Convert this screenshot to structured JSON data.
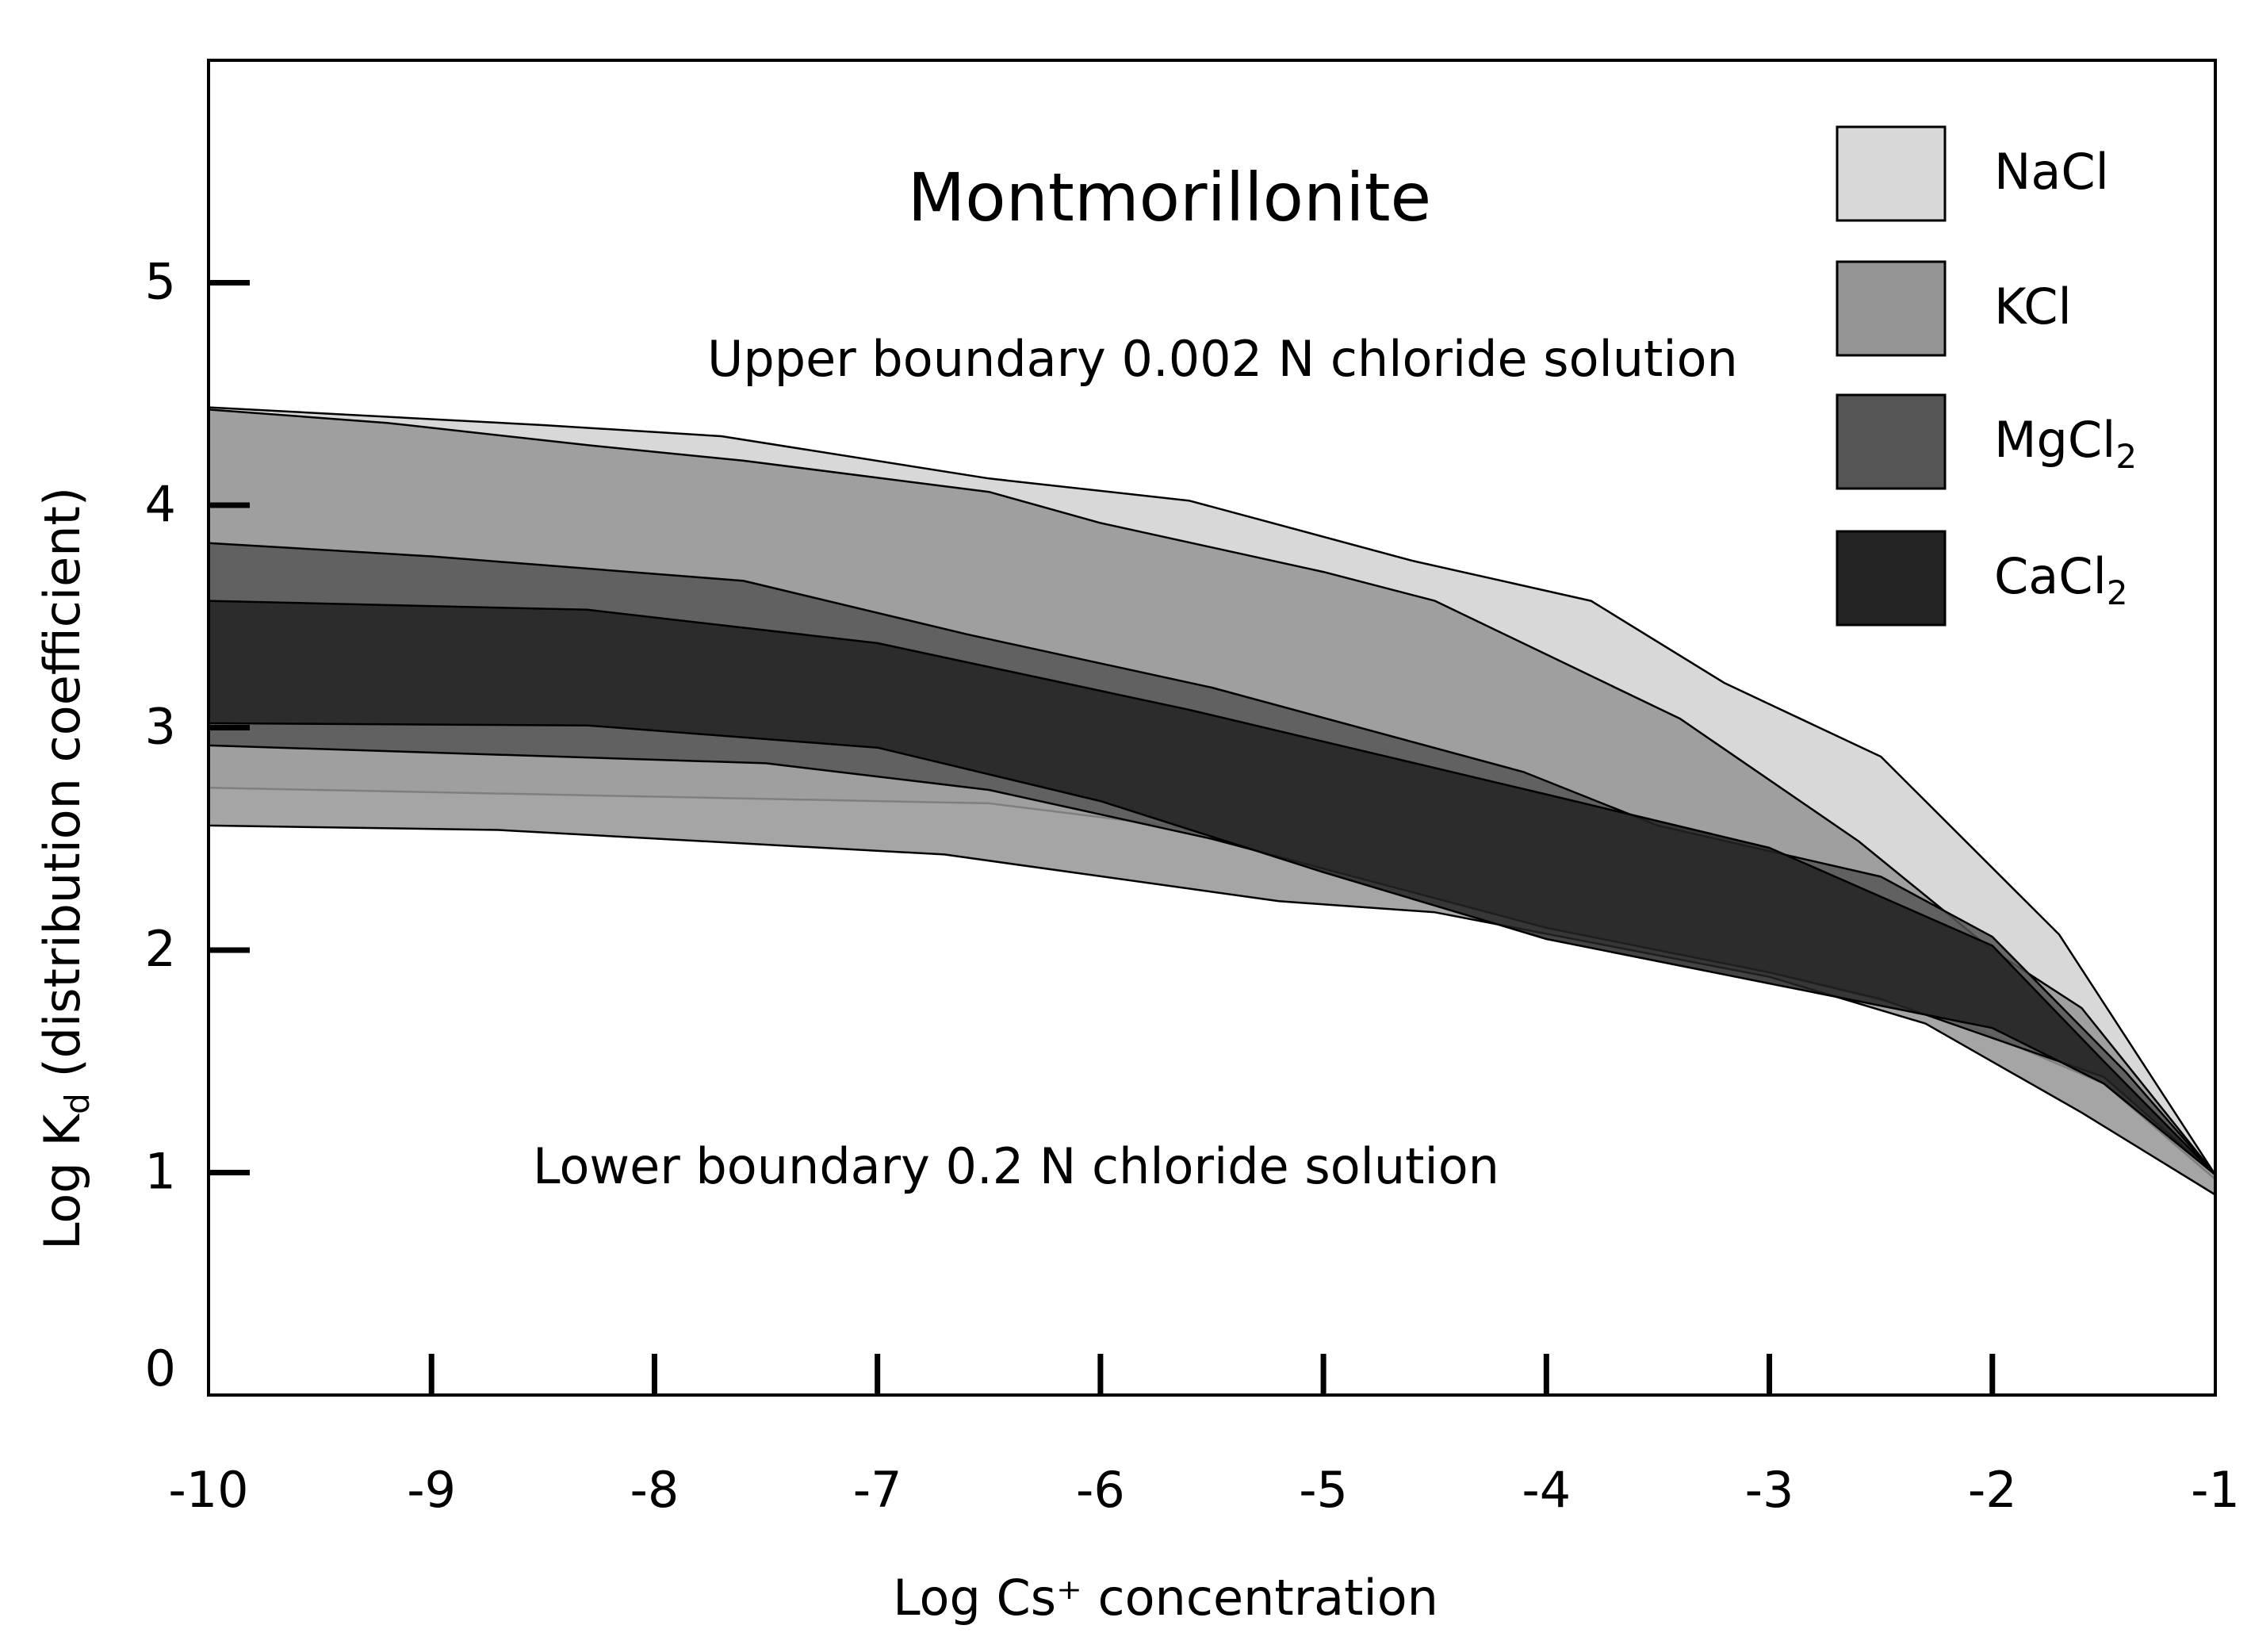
{
  "chart_data": {
    "type": "area",
    "title": "Montmorillonite",
    "xlabel": "Log Cs⁺ concentration",
    "ylabel": {
      "main": "Log K",
      "subscript": "d",
      "rest": " (distribution coefficient)"
    },
    "xlim": [
      -10,
      -1
    ],
    "ylim": [
      0,
      6
    ],
    "x_ticks": [
      -10,
      -9,
      -8,
      -7,
      -6,
      -5,
      -4,
      -3,
      -2,
      -1
    ],
    "y_ticks": [
      0,
      1,
      2,
      3,
      4,
      5
    ],
    "grid": false,
    "legend_position": "top-right",
    "annotations": {
      "upper": "Upper boundary 0.002 N chloride solution",
      "lower": "Lower boundary 0.2 N chloride solution"
    },
    "series": [
      {
        "name": "NaCl",
        "color": "#d8d8d8",
        "upper": [
          [
            -10,
            4.44
          ],
          [
            -8.5,
            4.36
          ],
          [
            -7.7,
            4.31
          ],
          [
            -6.5,
            4.12
          ],
          [
            -5.6,
            4.02
          ],
          [
            -4.6,
            3.75
          ],
          [
            -3.8,
            3.57
          ],
          [
            -3.2,
            3.2
          ],
          [
            -2.5,
            2.87
          ],
          [
            -1.7,
            2.07
          ],
          [
            -1,
            0.99
          ]
        ],
        "lower": [
          [
            -1,
            0.97
          ],
          [
            -1.5,
            1.4
          ],
          [
            -2.2,
            1.7
          ],
          [
            -3,
            1.9
          ],
          [
            -4.5,
            2.3
          ],
          [
            -5.7,
            2.56
          ],
          [
            -6.5,
            2.66
          ],
          [
            -8,
            2.69
          ],
          [
            -10,
            2.73
          ]
        ]
      },
      {
        "name": "KCl",
        "color": "#959595",
        "upper": [
          [
            -10,
            4.43
          ],
          [
            -9.2,
            4.37
          ],
          [
            -8.3,
            4.27
          ],
          [
            -7.6,
            4.2
          ],
          [
            -6.5,
            4.06
          ],
          [
            -6,
            3.92
          ],
          [
            -5,
            3.7
          ],
          [
            -4.5,
            3.57
          ],
          [
            -3.4,
            3.04
          ],
          [
            -2.6,
            2.49
          ],
          [
            -2,
            2
          ],
          [
            -1.6,
            1.74
          ],
          [
            -1,
            0.99
          ]
        ],
        "lower": [
          [
            -1,
            0.9
          ],
          [
            -1.6,
            1.27
          ],
          [
            -2.3,
            1.67
          ],
          [
            -3,
            1.88
          ],
          [
            -4.5,
            2.17
          ],
          [
            -5.2,
            2.22
          ],
          [
            -6.7,
            2.43
          ],
          [
            -8.7,
            2.54
          ],
          [
            -10,
            2.56
          ]
        ]
      },
      {
        "name": "MgCl2",
        "color": "#565656",
        "upper": [
          [
            -10,
            3.83
          ],
          [
            -9,
            3.77
          ],
          [
            -7.6,
            3.66
          ],
          [
            -6.6,
            3.42
          ],
          [
            -5.5,
            3.18
          ],
          [
            -4.1,
            2.8
          ],
          [
            -3.5,
            2.56
          ],
          [
            -2.5,
            2.33
          ],
          [
            -2,
            2.06
          ],
          [
            -1.4,
            1.45
          ],
          [
            -1,
            0.99
          ]
        ],
        "lower": [
          [
            -1,
            0.99
          ],
          [
            -1.5,
            1.43
          ],
          [
            -2.5,
            1.78
          ],
          [
            -3,
            1.9
          ],
          [
            -4,
            2.1
          ],
          [
            -5.5,
            2.5
          ],
          [
            -6.5,
            2.72
          ],
          [
            -7.5,
            2.84
          ],
          [
            -10,
            2.92
          ]
        ]
      },
      {
        "name": "CaCl2",
        "color": "#232323",
        "upper": [
          [
            -10,
            3.57
          ],
          [
            -8.3,
            3.53
          ],
          [
            -7,
            3.38
          ],
          [
            -5.6,
            3.08
          ],
          [
            -4,
            2.7
          ],
          [
            -3,
            2.46
          ],
          [
            -2,
            2.02
          ],
          [
            -1.5,
            1.5
          ],
          [
            -1,
            0.99
          ]
        ],
        "lower": [
          [
            -1,
            0.99
          ],
          [
            -1.5,
            1.4
          ],
          [
            -2,
            1.65
          ],
          [
            -3,
            1.85
          ],
          [
            -4,
            2.05
          ],
          [
            -5,
            2.35
          ],
          [
            -6,
            2.67
          ],
          [
            -7,
            2.91
          ],
          [
            -8.3,
            3.01
          ],
          [
            -10,
            3.02
          ]
        ]
      }
    ]
  }
}
